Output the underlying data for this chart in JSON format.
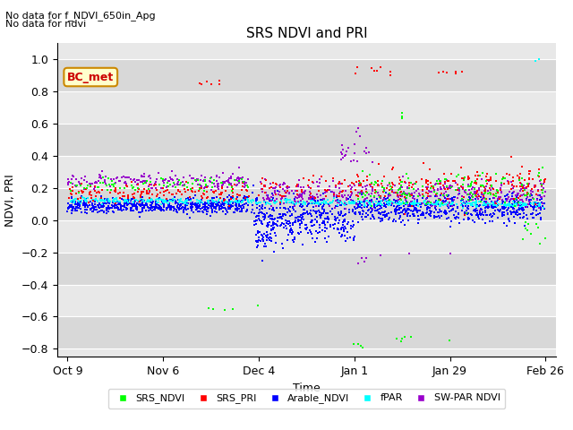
{
  "title": "SRS NDVI and PRI",
  "xlabel": "Time",
  "ylabel": "NDVI, PRI",
  "annotation1": "No data for f_NDVI_650in_Apg",
  "annotation2": "No data for ndvi",
  "bc_met_label": "BC_met",
  "legend_entries": [
    "SRS_NDVI",
    "SRS_PRI",
    "Arable_NDVI",
    "fPAR",
    "SW-PAR NDVI"
  ],
  "legend_colors": [
    "#00ff00",
    "#ff0000",
    "#0000ff",
    "#00ffff",
    "#9900cc"
  ],
  "ylim": [
    -0.85,
    1.1
  ],
  "yticks": [
    -0.8,
    -0.6,
    -0.4,
    -0.2,
    0.0,
    0.2,
    0.4,
    0.6,
    0.8,
    1.0
  ],
  "plot_bg_color": "#e8e8e8",
  "grid_color": "#ffffff",
  "xtick_positions": [
    0,
    28,
    56,
    84,
    112,
    140
  ],
  "xtick_labels": [
    "Oct 9",
    "Nov 6",
    "Dec 4",
    "Jan 1",
    "Jan 29",
    "Feb 26"
  ]
}
